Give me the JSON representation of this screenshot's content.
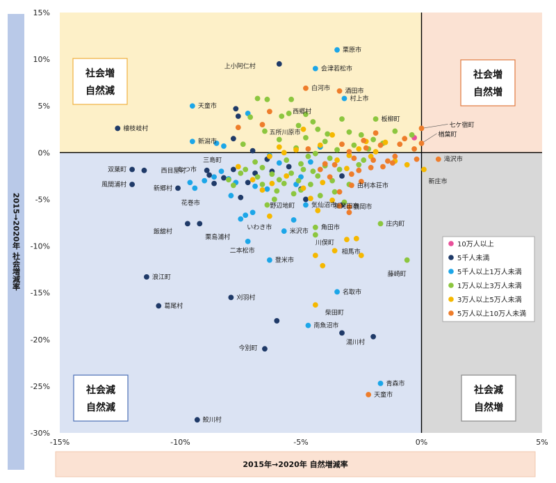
{
  "chart_data": {
    "type": "scatter",
    "xlabel": "2015年→2020年 自然増減率",
    "ylabel": "2015→2020年 社会増減率",
    "xlim": [
      -15,
      5
    ],
    "ylim": [
      -30,
      15
    ],
    "xticks": [
      "-15%",
      "-10%",
      "-5%",
      "0%",
      "5%"
    ],
    "yticks": [
      "15%",
      "10%",
      "5%",
      "0%",
      "-5%",
      "-10%",
      "-15%",
      "-20%",
      "-25%",
      "-30%"
    ],
    "quadrants": [
      {
        "key": "tl",
        "line1": "社会増",
        "line2": "自然減",
        "color": "#fdf0c8",
        "border": "#f0b040"
      },
      {
        "key": "tr",
        "line1": "社会増",
        "line2": "自然増",
        "color": "#fbe2d3",
        "border": "#e07a40"
      },
      {
        "key": "bl",
        "line1": "社会減",
        "line2": "自然減",
        "color": "#dbe3f3",
        "border": "#4a6fb5"
      },
      {
        "key": "br",
        "line1": "社会減",
        "line2": "自然増",
        "color": "#d8d8d8",
        "border": "#888888"
      }
    ],
    "series": [
      {
        "name": "10万人以上",
        "color": "#e8509a"
      },
      {
        "name": "5千人未満",
        "color": "#1f3a68"
      },
      {
        "name": "5千人以上1万人未満",
        "color": "#1ca6e8"
      },
      {
        "name": "1万人以上3万人未満",
        "color": "#8cc63f"
      },
      {
        "name": "3万人以上5万人未満",
        "color": "#f5b800"
      },
      {
        "name": "5万人以上10万人未満",
        "color": "#ee7d2b"
      }
    ],
    "labeled_points": [
      {
        "label": "栗原市",
        "x": -3.5,
        "y": 11.0,
        "s": 2
      },
      {
        "label": "上小阿仁村",
        "x": -5.9,
        "y": 9.5,
        "s": 1
      },
      {
        "label": "会津若松市",
        "x": -4.4,
        "y": 9.0,
        "s": 2
      },
      {
        "label": "白河市",
        "x": -4.8,
        "y": 6.9,
        "s": 5
      },
      {
        "label": "酒田市",
        "x": -3.4,
        "y": 6.6,
        "s": 5
      },
      {
        "label": "村上市",
        "x": -3.2,
        "y": 5.8,
        "s": 2
      },
      {
        "label": "西郷村",
        "x": -5.4,
        "y": 5.7,
        "s": 3
      },
      {
        "label": "天童市",
        "x": -9.5,
        "y": 5.0,
        "s": 2
      },
      {
        "label": "板柳町",
        "x": -1.9,
        "y": 3.6,
        "s": 3
      },
      {
        "label": "五所川原市",
        "x": -6.6,
        "y": 3.0,
        "s": 5
      },
      {
        "label": "檜枝岐村",
        "x": -12.6,
        "y": 2.6,
        "s": 1
      },
      {
        "label": "七ケ宿町",
        "x": 0.0,
        "y": 2.6,
        "s": 5
      },
      {
        "label": "新潟市",
        "x": -9.5,
        "y": 1.2,
        "s": 2
      },
      {
        "label": "楢葉町",
        "x": 0.0,
        "y": 1.0,
        "s": 5
      },
      {
        "label": "滝沢市",
        "x": 0.7,
        "y": -0.7,
        "s": 5
      },
      {
        "label": "双葉町",
        "x": -12.0,
        "y": -1.8,
        "s": 1
      },
      {
        "label": "西目屋村",
        "x": -11.5,
        "y": -1.9,
        "s": 1
      },
      {
        "label": "三島町",
        "x": -8.9,
        "y": -1.9,
        "s": 1
      },
      {
        "label": "むつ市",
        "x": -9.6,
        "y": -3.2,
        "s": 2
      },
      {
        "label": "新庄市",
        "x": 0.1,
        "y": -1.8,
        "s": 4
      },
      {
        "label": "風間浦村",
        "x": -12.0,
        "y": -3.4,
        "s": 1
      },
      {
        "label": "由利本荘市",
        "x": -2.9,
        "y": -3.5,
        "s": 5
      },
      {
        "label": "新郷村",
        "x": -10.1,
        "y": -3.8,
        "s": 1
      },
      {
        "label": "花巻市",
        "x": -9.4,
        "y": -3.8,
        "s": 2
      },
      {
        "label": "野辺地町",
        "x": -6.4,
        "y": -5.6,
        "s": 3
      },
      {
        "label": "気仙沼市",
        "x": -4.8,
        "y": -5.6,
        "s": 2
      },
      {
        "label": "新発田市",
        "x": -3.4,
        "y": -5.7,
        "s": 5
      },
      {
        "label": "鶴岡市",
        "x": -3.0,
        "y": -5.8,
        "s": 5
      },
      {
        "label": "いわき市",
        "x": -7.3,
        "y": -6.7,
        "s": 2
      },
      {
        "label": "角田市",
        "x": -4.4,
        "y": -8.0,
        "s": 3
      },
      {
        "label": "庄内町",
        "x": -1.7,
        "y": -7.6,
        "s": 3
      },
      {
        "label": "飯舘村",
        "x": -9.7,
        "y": -7.6,
        "s": 1
      },
      {
        "label": "栗島浦村",
        "x": -9.2,
        "y": -7.6,
        "s": 1
      },
      {
        "label": "米沢市",
        "x": -5.7,
        "y": -8.4,
        "s": 2
      },
      {
        "label": "川俣町",
        "x": -4.4,
        "y": -8.8,
        "s": 3
      },
      {
        "label": "二本松市",
        "x": -7.2,
        "y": -9.5,
        "s": 2
      },
      {
        "label": "相馬市",
        "x": -3.6,
        "y": -10.5,
        "s": 4
      },
      {
        "label": "登米市",
        "x": -6.3,
        "y": -11.5,
        "s": 2
      },
      {
        "label": "浪江町",
        "x": -11.4,
        "y": -13.3,
        "s": 1
      },
      {
        "label": "藤崎町",
        "x": -0.6,
        "y": -11.5,
        "s": 3
      },
      {
        "label": "名取市",
        "x": -3.5,
        "y": -14.9,
        "s": 2
      },
      {
        "label": "刈羽村",
        "x": -7.9,
        "y": -15.5,
        "s": 1
      },
      {
        "label": "葛尾村",
        "x": -10.9,
        "y": -16.4,
        "s": 1
      },
      {
        "label": "柴田町",
        "x": -4.4,
        "y": -16.3,
        "s": 4
      },
      {
        "label": "南魚沼市",
        "x": -4.7,
        "y": -18.5,
        "s": 2
      },
      {
        "label": "湯川村",
        "x": -3.3,
        "y": -19.3,
        "s": 1
      },
      {
        "label": "今別町",
        "x": -6.5,
        "y": -21.0,
        "s": 1
      },
      {
        "label": "青森市",
        "x": -1.7,
        "y": -24.7,
        "s": 2
      },
      {
        "label": "天童市",
        "x": -2.2,
        "y": -25.9,
        "s": 5
      },
      {
        "label": "鮫川村",
        "x": -9.3,
        "y": -28.6,
        "s": 1
      }
    ],
    "points": [
      {
        "x": -0.3,
        "y": 1.6,
        "s": 0
      },
      {
        "x": -6.0,
        "y": -18.0,
        "s": 1
      },
      {
        "x": -2.0,
        "y": -19.7,
        "s": 1
      },
      {
        "x": -7.7,
        "y": 4.7,
        "s": 1
      },
      {
        "x": -7.6,
        "y": 3.9,
        "s": 1
      },
      {
        "x": -7.8,
        "y": 1.5,
        "s": 1
      },
      {
        "x": -7.8,
        "y": -1.8,
        "s": 1
      },
      {
        "x": -8.2,
        "y": -2.7,
        "s": 1
      },
      {
        "x": -7.2,
        "y": -3.2,
        "s": 1
      },
      {
        "x": -7.5,
        "y": -4.8,
        "s": 1
      },
      {
        "x": -6.9,
        "y": -2.2,
        "s": 1
      },
      {
        "x": -6.4,
        "y": -0.7,
        "s": 1
      },
      {
        "x": -5.5,
        "y": -1.5,
        "s": 1
      },
      {
        "x": -4.8,
        "y": -5.0,
        "s": 1
      },
      {
        "x": -3.3,
        "y": -2.5,
        "s": 1
      },
      {
        "x": -7.0,
        "y": 0.2,
        "s": 1
      },
      {
        "x": -8.6,
        "y": -3.3,
        "s": 1
      },
      {
        "x": -6.2,
        "y": -2.0,
        "s": 1
      },
      {
        "x": -3.3,
        "y": -5.6,
        "s": 1
      },
      {
        "x": -5.0,
        "y": -3.9,
        "s": 1
      },
      {
        "x": -8.8,
        "y": -2.4,
        "s": 1
      },
      {
        "x": -8.5,
        "y": 1.0,
        "s": 2
      },
      {
        "x": -8.2,
        "y": 0.7,
        "s": 2
      },
      {
        "x": -8.3,
        "y": -2.0,
        "s": 2
      },
      {
        "x": -8.0,
        "y": -2.8,
        "s": 2
      },
      {
        "x": -7.0,
        "y": -6.4,
        "s": 2
      },
      {
        "x": -7.2,
        "y": 4.2,
        "s": 2
      },
      {
        "x": -6.9,
        "y": -3.6,
        "s": 2
      },
      {
        "x": -7.9,
        "y": -4.6,
        "s": 2
      },
      {
        "x": -7.5,
        "y": -7.1,
        "s": 2
      },
      {
        "x": -5.2,
        "y": -3.4,
        "s": 2
      },
      {
        "x": -5.0,
        "y": -2.6,
        "s": 2
      },
      {
        "x": -4.6,
        "y": -1.0,
        "s": 2
      },
      {
        "x": -4.2,
        "y": 0.6,
        "s": 2
      },
      {
        "x": -5.9,
        "y": -1.1,
        "s": 2
      },
      {
        "x": -9.0,
        "y": -3.0,
        "s": 2
      },
      {
        "x": -6.4,
        "y": -3.9,
        "s": 2
      },
      {
        "x": -6.3,
        "y": -0.3,
        "s": 2
      },
      {
        "x": -8.6,
        "y": -2.6,
        "s": 2
      },
      {
        "x": -5.3,
        "y": -7.2,
        "s": 2
      },
      {
        "x": -7.7,
        "y": -3.2,
        "s": 2
      },
      {
        "x": -7.4,
        "y": 0.9,
        "s": 3
      },
      {
        "x": -7.1,
        "y": 3.8,
        "s": 3
      },
      {
        "x": -6.8,
        "y": 5.8,
        "s": 3
      },
      {
        "x": -6.4,
        "y": 5.7,
        "s": 3
      },
      {
        "x": -5.8,
        "y": 3.9,
        "s": 3
      },
      {
        "x": -5.5,
        "y": 4.2,
        "s": 3
      },
      {
        "x": -5.1,
        "y": 2.9,
        "s": 3
      },
      {
        "x": -4.8,
        "y": 4.1,
        "s": 3
      },
      {
        "x": -4.5,
        "y": 3.3,
        "s": 3
      },
      {
        "x": -4.3,
        "y": 2.5,
        "s": 3
      },
      {
        "x": -3.9,
        "y": 2.0,
        "s": 3
      },
      {
        "x": -3.3,
        "y": 3.6,
        "s": 3
      },
      {
        "x": -3.0,
        "y": 2.2,
        "s": 3
      },
      {
        "x": -2.5,
        "y": 1.9,
        "s": 3
      },
      {
        "x": -2.0,
        "y": 1.4,
        "s": 3
      },
      {
        "x": -1.6,
        "y": 1.0,
        "s": 3
      },
      {
        "x": -1.1,
        "y": 2.3,
        "s": 3
      },
      {
        "x": -0.4,
        "y": 1.9,
        "s": 3
      },
      {
        "x": -5.9,
        "y": 1.4,
        "s": 3
      },
      {
        "x": -6.5,
        "y": 2.3,
        "s": 3
      },
      {
        "x": -4.0,
        "y": 1.2,
        "s": 3
      },
      {
        "x": -7.3,
        "y": -1.8,
        "s": 3
      },
      {
        "x": -6.8,
        "y": -2.6,
        "s": 3
      },
      {
        "x": -6.6,
        "y": -3.4,
        "s": 3
      },
      {
        "x": -6.2,
        "y": -2.3,
        "s": 3
      },
      {
        "x": -5.7,
        "y": -3.3,
        "s": 3
      },
      {
        "x": -5.4,
        "y": -2.2,
        "s": 3
      },
      {
        "x": -5.1,
        "y": -3.0,
        "s": 3
      },
      {
        "x": -4.9,
        "y": -1.8,
        "s": 3
      },
      {
        "x": -4.6,
        "y": -3.4,
        "s": 3
      },
      {
        "x": -4.3,
        "y": -2.5,
        "s": 3
      },
      {
        "x": -4.0,
        "y": -1.4,
        "s": 3
      },
      {
        "x": -3.7,
        "y": -3.0,
        "s": 3
      },
      {
        "x": -3.4,
        "y": -1.8,
        "s": 3
      },
      {
        "x": -7.8,
        "y": -3.5,
        "s": 3
      },
      {
        "x": -8.0,
        "y": -2.9,
        "s": 3
      },
      {
        "x": -6.0,
        "y": -4.1,
        "s": 3
      },
      {
        "x": -5.3,
        "y": -4.4,
        "s": 3
      },
      {
        "x": -5.0,
        "y": -4.0,
        "s": 3
      },
      {
        "x": -4.2,
        "y": -4.6,
        "s": 3
      },
      {
        "x": -3.6,
        "y": -4.2,
        "s": 3
      },
      {
        "x": -3.0,
        "y": -3.4,
        "s": 3
      },
      {
        "x": -2.6,
        "y": -1.3,
        "s": 3
      },
      {
        "x": -6.9,
        "y": -1.0,
        "s": 3
      },
      {
        "x": -5.6,
        "y": -0.8,
        "s": 3
      },
      {
        "x": -4.7,
        "y": -0.4,
        "s": 3
      },
      {
        "x": -3.8,
        "y": -0.6,
        "s": 3
      },
      {
        "x": -5.2,
        "y": 0.5,
        "s": 3
      },
      {
        "x": -4.8,
        "y": 1.6,
        "s": 3
      },
      {
        "x": -2.8,
        "y": 0.8,
        "s": 3
      },
      {
        "x": -2.2,
        "y": 0.4,
        "s": 3
      },
      {
        "x": -7.5,
        "y": -2.2,
        "s": 3
      },
      {
        "x": -6.6,
        "y": -1.6,
        "s": 3
      },
      {
        "x": -5.0,
        "y": -1.2,
        "s": 3
      },
      {
        "x": -4.4,
        "y": -0.1,
        "s": 3
      },
      {
        "x": -3.5,
        "y": 0.3,
        "s": 3
      },
      {
        "x": -2.4,
        "y": -0.8,
        "s": 3
      },
      {
        "x": -5.9,
        "y": -2.9,
        "s": 3
      },
      {
        "x": -4.5,
        "y": -2.0,
        "s": 3
      },
      {
        "x": -6.1,
        "y": -5.0,
        "s": 3
      },
      {
        "x": -3.2,
        "y": -5.3,
        "s": 3
      },
      {
        "x": -6.3,
        "y": -0.4,
        "s": 4
      },
      {
        "x": -5.7,
        "y": 0.0,
        "s": 4
      },
      {
        "x": -5.2,
        "y": 0.3,
        "s": 4
      },
      {
        "x": -4.2,
        "y": 0.8,
        "s": 4
      },
      {
        "x": -3.5,
        "y": -0.8,
        "s": 4
      },
      {
        "x": -3.0,
        "y": -0.3,
        "s": 4
      },
      {
        "x": -2.6,
        "y": 0.4,
        "s": 4
      },
      {
        "x": -2.1,
        "y": -0.4,
        "s": 4
      },
      {
        "x": -1.5,
        "y": 1.1,
        "s": 4
      },
      {
        "x": -1.1,
        "y": -0.9,
        "s": 4
      },
      {
        "x": -0.6,
        "y": -1.3,
        "s": 4
      },
      {
        "x": -7.6,
        "y": -1.5,
        "s": 4
      },
      {
        "x": -7.0,
        "y": -2.9,
        "s": 4
      },
      {
        "x": -6.6,
        "y": -4.0,
        "s": 4
      },
      {
        "x": -6.3,
        "y": -6.8,
        "s": 4
      },
      {
        "x": -5.6,
        "y": -2.5,
        "s": 4
      },
      {
        "x": -4.9,
        "y": -3.8,
        "s": 4
      },
      {
        "x": -4.6,
        "y": -4.9,
        "s": 4
      },
      {
        "x": -4.1,
        "y": -3.2,
        "s": 4
      },
      {
        "x": -3.7,
        "y": -5.1,
        "s": 4
      },
      {
        "x": -3.1,
        "y": -9.3,
        "s": 4
      },
      {
        "x": -4.1,
        "y": -12.1,
        "s": 4
      },
      {
        "x": -4.4,
        "y": -11.0,
        "s": 4
      },
      {
        "x": -2.7,
        "y": -9.2,
        "s": 4
      },
      {
        "x": -2.5,
        "y": -11.0,
        "s": 4
      },
      {
        "x": -4.3,
        "y": -6.2,
        "s": 4
      },
      {
        "x": -4.9,
        "y": 2.5,
        "s": 4
      },
      {
        "x": -3.7,
        "y": 1.9,
        "s": 4
      },
      {
        "x": -2.3,
        "y": 1.2,
        "s": 4
      },
      {
        "x": -6.2,
        "y": -3.3,
        "s": 4
      },
      {
        "x": -5.9,
        "y": 0.6,
        "s": 4
      },
      {
        "x": -3.1,
        "y": -1.7,
        "s": 4
      },
      {
        "x": -1.9,
        "y": 0.1,
        "s": 4
      },
      {
        "x": -7.6,
        "y": 2.7,
        "s": 5
      },
      {
        "x": -6.3,
        "y": 4.4,
        "s": 5
      },
      {
        "x": -4.7,
        "y": 0.4,
        "s": 5
      },
      {
        "x": -4.0,
        "y": -1.2,
        "s": 5
      },
      {
        "x": -3.3,
        "y": 0.9,
        "s": 5
      },
      {
        "x": -2.8,
        "y": -0.6,
        "s": 5
      },
      {
        "x": -2.4,
        "y": 1.3,
        "s": 5
      },
      {
        "x": -2.0,
        "y": -0.8,
        "s": 5
      },
      {
        "x": -1.7,
        "y": 0.8,
        "s": 5
      },
      {
        "x": -1.2,
        "y": -1.1,
        "s": 5
      },
      {
        "x": -0.7,
        "y": 1.5,
        "s": 5
      },
      {
        "x": -0.3,
        "y": 0.4,
        "s": 5
      },
      {
        "x": -0.2,
        "y": -0.7,
        "s": 5
      },
      {
        "x": -3.8,
        "y": -2.6,
        "s": 5
      },
      {
        "x": -3.4,
        "y": -4.2,
        "s": 5
      },
      {
        "x": -2.9,
        "y": -2.3,
        "s": 5
      },
      {
        "x": -2.5,
        "y": -3.1,
        "s": 5
      },
      {
        "x": -2.1,
        "y": -1.6,
        "s": 5
      },
      {
        "x": -1.6,
        "y": -1.5,
        "s": 5
      },
      {
        "x": -1.1,
        "y": -0.4,
        "s": 5
      },
      {
        "x": -3.0,
        "y": -6.4,
        "s": 5
      },
      {
        "x": -4.2,
        "y": -1.8,
        "s": 5
      },
      {
        "x": -3.6,
        "y": -1.3,
        "s": 5
      },
      {
        "x": -2.3,
        "y": 0.5,
        "s": 5
      },
      {
        "x": -1.9,
        "y": 2.1,
        "s": 5
      },
      {
        "x": -3.0,
        "y": 0.1,
        "s": 5
      },
      {
        "x": -2.6,
        "y": -1.9,
        "s": 5
      },
      {
        "x": -1.4,
        "y": -0.9,
        "s": 5
      },
      {
        "x": -0.9,
        "y": 0.9,
        "s": 5
      }
    ]
  }
}
